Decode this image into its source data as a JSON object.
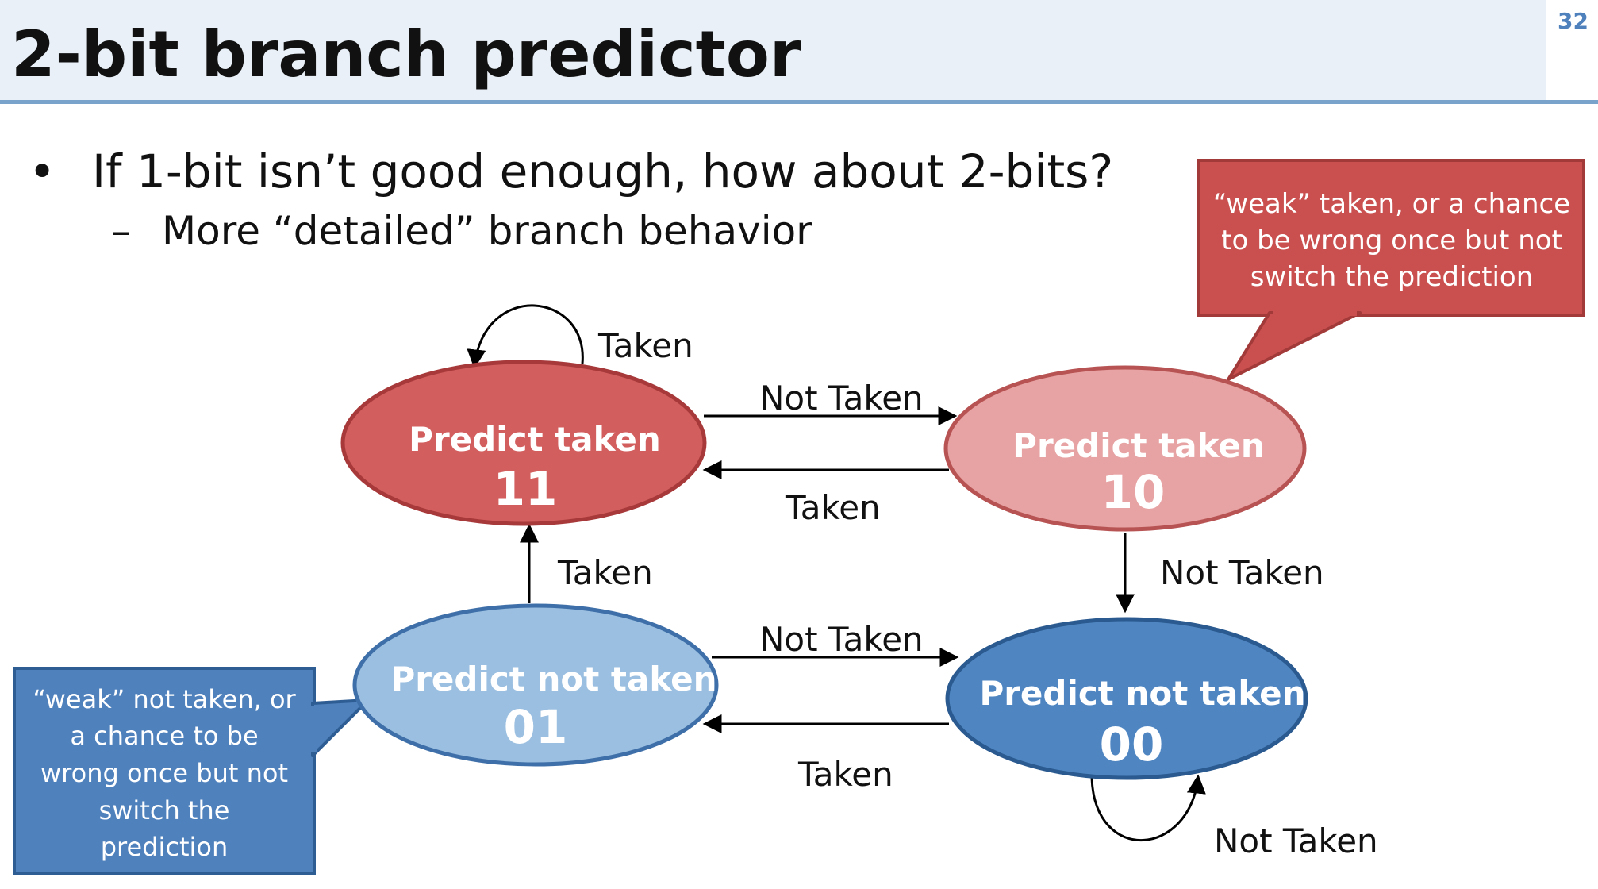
{
  "slide": {
    "title": "2-bit branch predictor",
    "number": "32"
  },
  "bullets": {
    "main_marker": "•",
    "main_text": "If 1-bit isn’t good enough, how about 2-bits?",
    "sub_marker": "–",
    "sub_text": "More “detailed” branch behavior"
  },
  "states": {
    "s11": {
      "label": "Predict taken",
      "code": "11",
      "color": "#d25e5e"
    },
    "s10": {
      "label": "Predict taken",
      "code": "10",
      "color": "#e7a3a3"
    },
    "s01": {
      "label": "Predict not taken",
      "code": "01",
      "color": "#9bbfe0"
    },
    "s00": {
      "label": "Predict not taken",
      "code": "00",
      "color": "#4f86c2"
    }
  },
  "transitions": {
    "self_11": "Taken",
    "t11_10": "Not Taken",
    "t10_11": "Taken",
    "t01_11": "Taken",
    "t10_00": "Not Taken",
    "t01_00": "Not Taken",
    "t00_01": "Taken",
    "self_00": "Not Taken"
  },
  "callouts": {
    "weak_taken": "“weak” taken, or a chance to be wrong once but not switch the prediction",
    "weak_taken_lines": [
      "“weak” taken, or a chance",
      "to be wrong once but not",
      "switch the prediction"
    ],
    "weak_not_taken": "“weak” not taken, or a chance to be wrong once but not switch the prediction",
    "weak_not_taken_lines": [
      "“weak” not taken, or",
      "a chance to be",
      "wrong once but not",
      "switch the",
      "prediction"
    ],
    "red_color": "#c9504f",
    "blue_color": "#4f81bd"
  }
}
